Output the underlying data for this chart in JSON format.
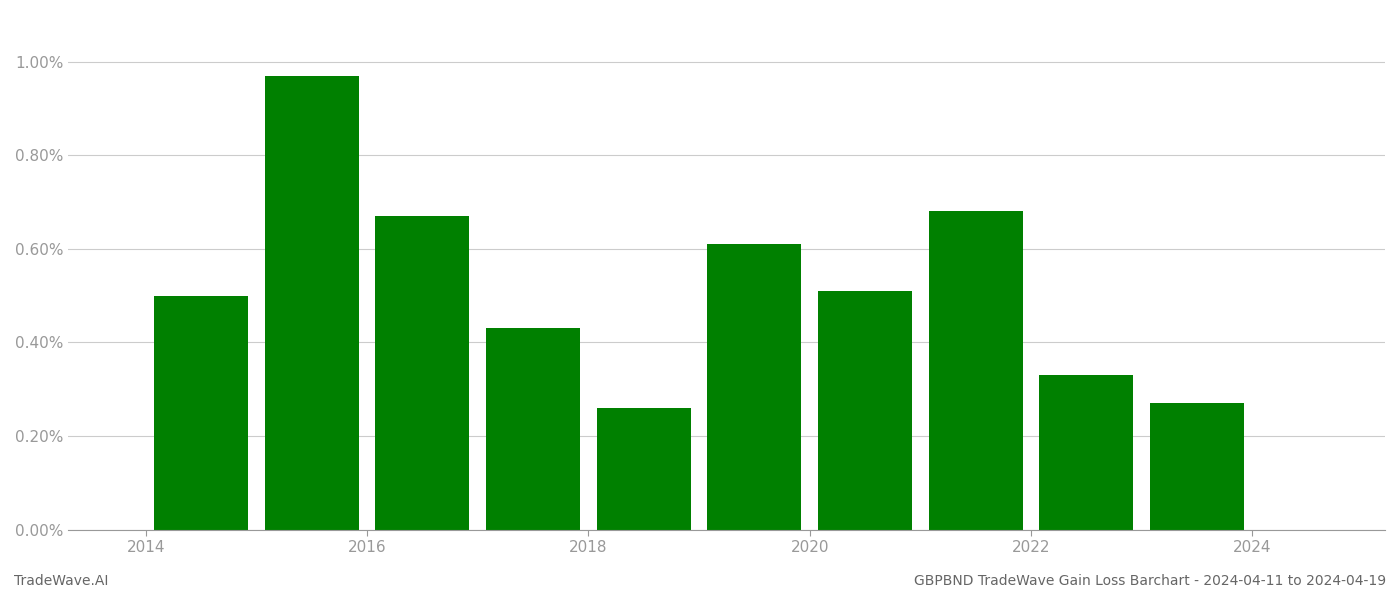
{
  "years": [
    2014,
    2015,
    2016,
    2017,
    2018,
    2019,
    2020,
    2021,
    2022,
    2023
  ],
  "bar_centers": [
    2014.5,
    2015.5,
    2016.5,
    2017.5,
    2018.5,
    2019.5,
    2020.5,
    2021.5,
    2022.5,
    2023.5
  ],
  "values": [
    0.005,
    0.0097,
    0.0067,
    0.0043,
    0.0026,
    0.0061,
    0.0051,
    0.0068,
    0.0033,
    0.0027
  ],
  "bar_color": "#008000",
  "title": "GBPBND TradeWave Gain Loss Barchart - 2024-04-11 to 2024-04-19",
  "bottom_left_text": "TradeWave.AI",
  "background_color": "#ffffff",
  "ylim": [
    0,
    0.011
  ],
  "yticks": [
    0.0,
    0.002,
    0.004,
    0.006,
    0.008,
    0.01
  ],
  "xticks": [
    2014,
    2016,
    2018,
    2020,
    2022,
    2024
  ],
  "xlim": [
    2013.3,
    2025.2
  ],
  "grid_color": "#cccccc",
  "tick_label_color": "#999999",
  "bottom_text_color": "#666666",
  "title_color": "#666666",
  "bar_width": 0.85
}
